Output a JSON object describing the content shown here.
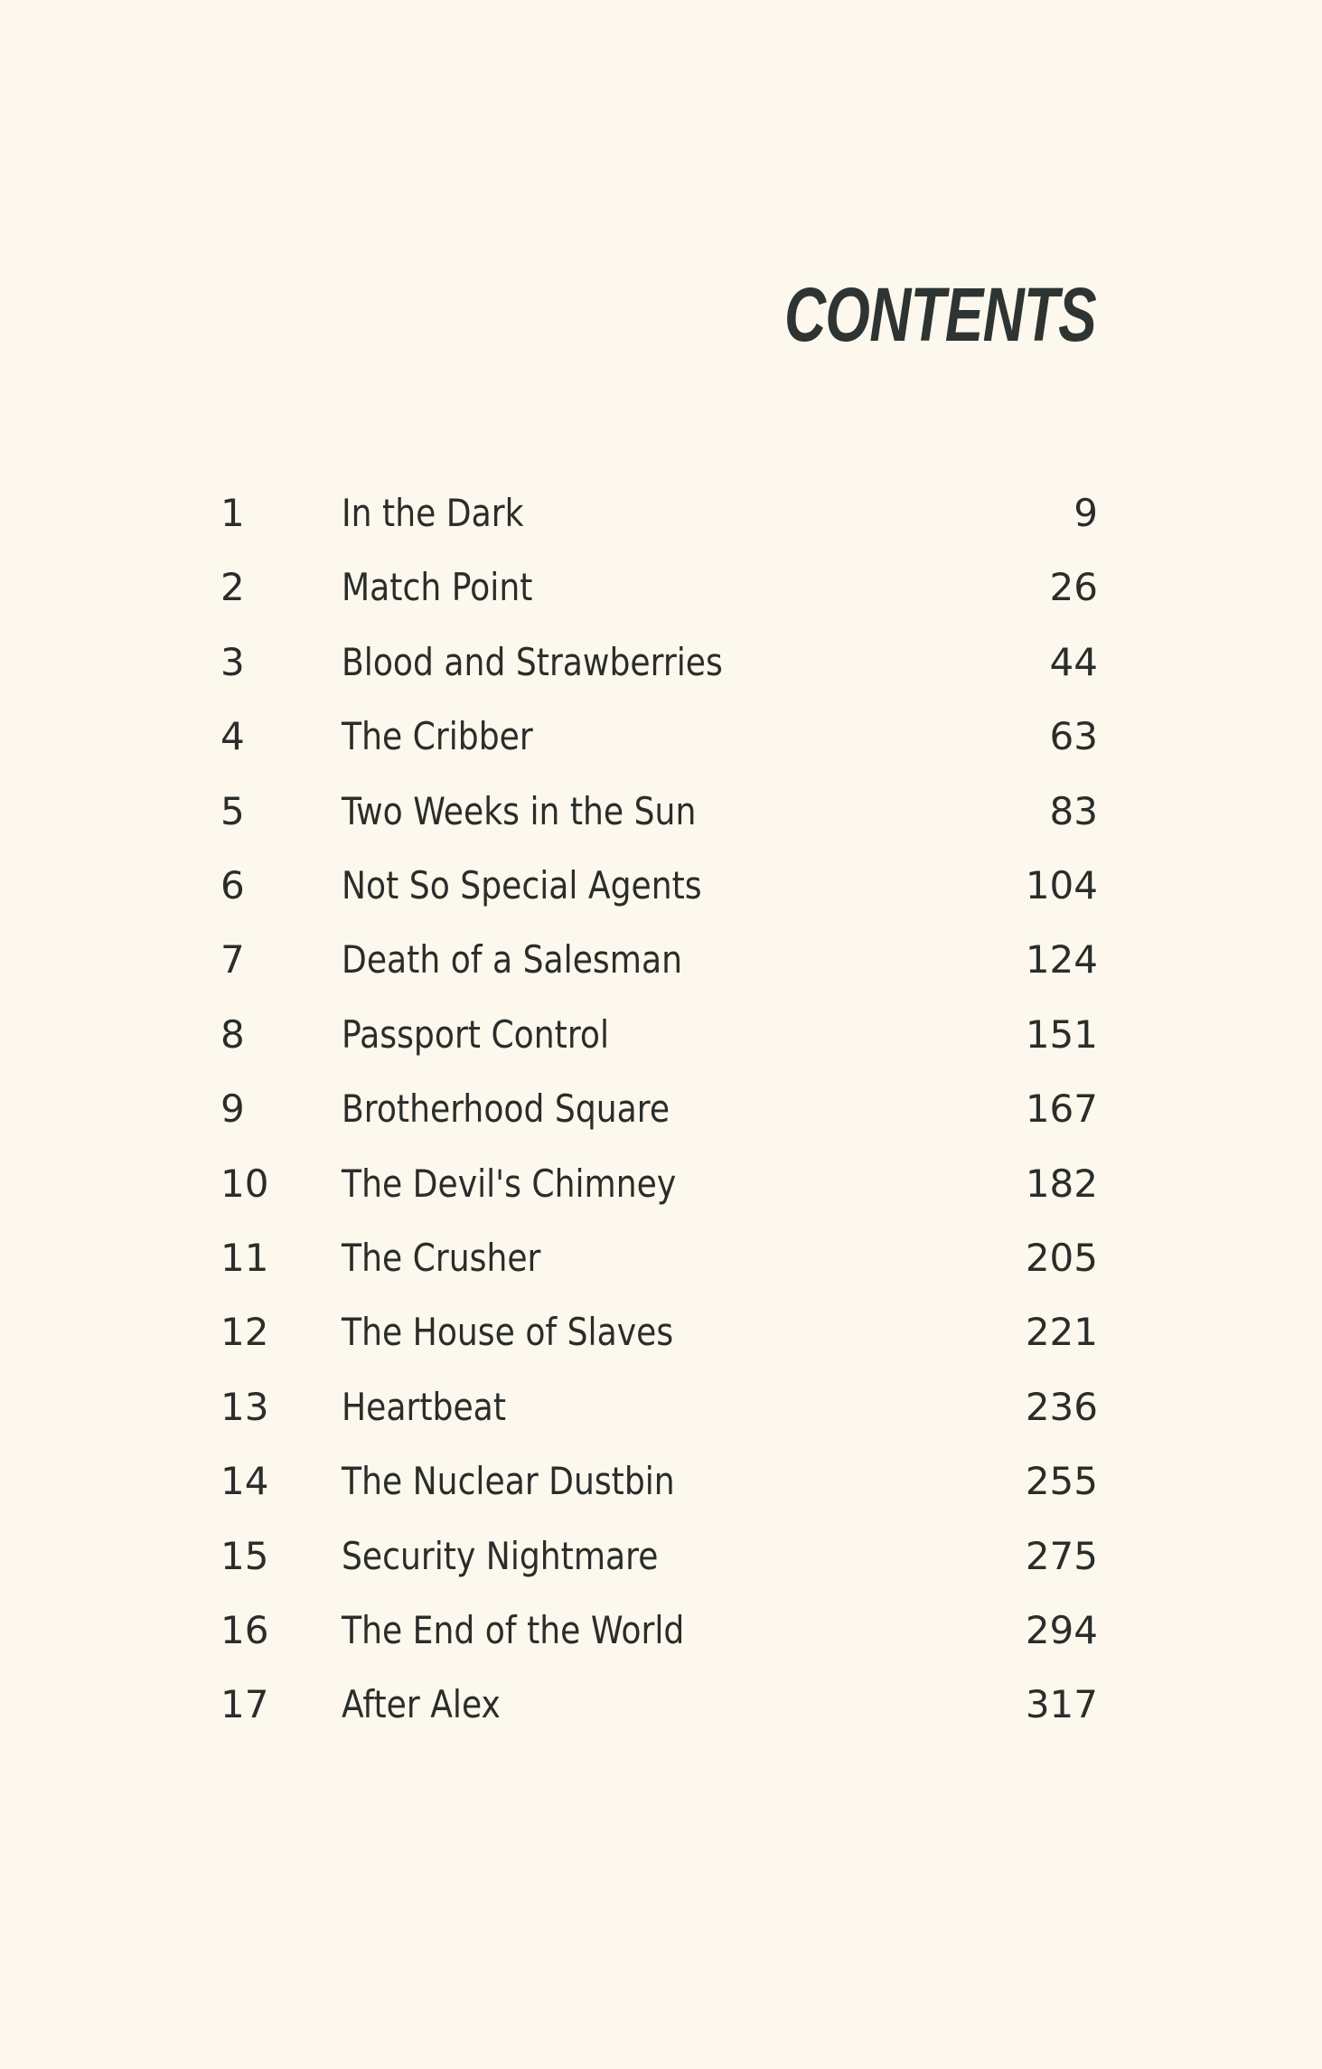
{
  "title": "CONTENTS",
  "chapters": [
    {
      "number": "1",
      "title": "In the Dark",
      "page": "9"
    },
    {
      "number": "2",
      "title": "Match Point",
      "page": "26"
    },
    {
      "number": "3",
      "title": "Blood and Strawberries",
      "page": "44"
    },
    {
      "number": "4",
      "title": "The Cribber",
      "page": "63"
    },
    {
      "number": "5",
      "title": "Two Weeks in the Sun",
      "page": "83"
    },
    {
      "number": "6",
      "title": "Not So Special Agents",
      "page": "104"
    },
    {
      "number": "7",
      "title": "Death of a Salesman",
      "page": "124"
    },
    {
      "number": "8",
      "title": "Passport Control",
      "page": "151"
    },
    {
      "number": "9",
      "title": "Brotherhood Square",
      "page": "167"
    },
    {
      "number": "10",
      "title": "The Devil's Chimney",
      "page": "182"
    },
    {
      "number": "11",
      "title": "The Crusher",
      "page": "205"
    },
    {
      "number": "12",
      "title": "The House of Slaves",
      "page": "221"
    },
    {
      "number": "13",
      "title": "Heartbeat",
      "page": "236"
    },
    {
      "number": "14",
      "title": "The Nuclear Dustbin",
      "page": "255"
    },
    {
      "number": "15",
      "title": "Security Nightmare",
      "page": "275"
    },
    {
      "number": "16",
      "title": "The End of the World",
      "page": "294"
    },
    {
      "number": "17",
      "title": "After Alex",
      "page": "317"
    }
  ]
}
